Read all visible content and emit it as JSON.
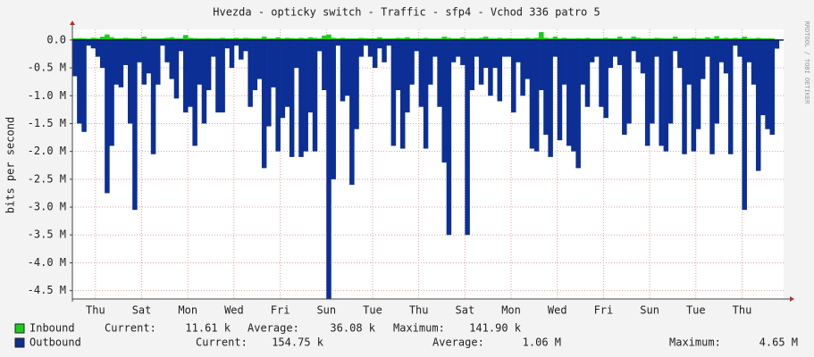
{
  "chart_data": {
    "type": "bar",
    "title": "Hvezda - opticky switch - Traffic - sfp4 - Vchod 336 patro 5",
    "y_label": "bits per second",
    "side_text": "RRDTOOL / TOBI OETIKER",
    "x": [
      0.1,
      0.3,
      0.5,
      0.7,
      0.9,
      1.1,
      1.3,
      1.5,
      1.7,
      1.9,
      2.1,
      2.3,
      2.5,
      2.7,
      2.9,
      3.1,
      3.3,
      3.5,
      3.7,
      3.9,
      4.1,
      4.3,
      4.5,
      4.7,
      4.9,
      5.1,
      5.3,
      5.5,
      5.7,
      5.9,
      6.1,
      6.3,
      6.5,
      6.7,
      6.9,
      7.1,
      7.3,
      7.5,
      7.7,
      7.9,
      8.1,
      8.3,
      8.5,
      8.7,
      8.9,
      9.1,
      9.3,
      9.5,
      9.7,
      9.9,
      10.1,
      10.3,
      10.5,
      10.7,
      10.9,
      11.1,
      11.3,
      11.5,
      11.7,
      11.9,
      12.1,
      12.3,
      12.5,
      12.7,
      12.9,
      13.1,
      13.3,
      13.5,
      13.7,
      13.9,
      14.1,
      14.3,
      14.5,
      14.7,
      14.9,
      15.1,
      15.3,
      15.5,
      15.7,
      15.9,
      16.1,
      16.3,
      16.5,
      16.7,
      16.9,
      17.1,
      17.3,
      17.5,
      17.7,
      17.9,
      18.1,
      18.3,
      18.5,
      18.7,
      18.9,
      19.1,
      19.3,
      19.5,
      19.7,
      19.9,
      20.1,
      20.3,
      20.5,
      20.7,
      20.9,
      21.1,
      21.3,
      21.5,
      21.7,
      21.9,
      22.1,
      22.3,
      22.5,
      22.7,
      22.9,
      23.1,
      23.3,
      23.5,
      23.7,
      23.9,
      24.1,
      24.3,
      24.5,
      24.7,
      24.9,
      25.1,
      25.3,
      25.5,
      25.7,
      25.9,
      26.1,
      26.3,
      26.5,
      26.7,
      26.9,
      27.1,
      27.3,
      27.5,
      27.7,
      27.9,
      28.1,
      28.3,
      28.5,
      28.7,
      28.9,
      29.1,
      29.3,
      29.5,
      29.7,
      29.9,
      30.1,
      30.3,
      30.5
    ],
    "series": [
      {
        "name": "Inbound",
        "color": "#18d018",
        "stats": [
          {
            "label": "Current:",
            "value": "11.61 k"
          },
          {
            "label": "Average:",
            "value": "36.08 k"
          },
          {
            "label": "Maximum:",
            "value": "141.90 k"
          }
        ],
        "values": [
          30000,
          35000,
          30000,
          25000,
          40000,
          30000,
          60000,
          100000,
          50000,
          30000,
          30000,
          40000,
          35000,
          30000,
          30000,
          60000,
          30000,
          30000,
          30000,
          30000,
          40000,
          50000,
          30000,
          30000,
          90000,
          40000,
          35000,
          30000,
          30000,
          35000,
          30000,
          30000,
          40000,
          30000,
          30000,
          40000,
          30000,
          40000,
          35000,
          30000,
          30000,
          60000,
          30000,
          30000,
          50000,
          30000,
          40000,
          35000,
          30000,
          40000,
          30000,
          50000,
          40000,
          30000,
          80000,
          100000,
          40000,
          30000,
          40000,
          30000,
          30000,
          30000,
          40000,
          35000,
          30000,
          30000,
          50000,
          30000,
          30000,
          30000,
          40000,
          35000,
          50000,
          30000,
          30000,
          30000,
          40000,
          30000,
          30000,
          30000,
          60000,
          40000,
          30000,
          30000,
          50000,
          30000,
          35000,
          30000,
          40000,
          60000,
          30000,
          30000,
          40000,
          30000,
          35000,
          30000,
          30000,
          30000,
          40000,
          30000,
          40000,
          141900,
          40000,
          30000,
          60000,
          30000,
          40000,
          30000,
          30000,
          35000,
          30000,
          40000,
          30000,
          30000,
          30000,
          40000,
          30000,
          30000,
          60000,
          30000,
          30000,
          60000,
          40000,
          30000,
          30000,
          30000,
          40000,
          35000,
          30000,
          30000,
          60000,
          30000,
          30000,
          30000,
          40000,
          30000,
          30000,
          50000,
          30000,
          70000,
          30000,
          40000,
          30000,
          40000,
          30000,
          60000,
          30000,
          30000,
          40000,
          30000,
          30000,
          30000,
          11610
        ]
      },
      {
        "name": "Outbound",
        "color": "#0c2f96",
        "stats": [
          {
            "label": "Current:",
            "value": "154.75 k"
          },
          {
            "label": "Average:",
            "value": "1.06 M"
          },
          {
            "label": "Maximum:",
            "value": "4.65 M"
          }
        ],
        "values": [
          -650000,
          -1500000,
          -1650000,
          -100000,
          -150000,
          -300000,
          -500000,
          -2750000,
          -1900000,
          -800000,
          -850000,
          -450000,
          -1500000,
          -3050000,
          -400000,
          -800000,
          -600000,
          -2050000,
          -800000,
          -100000,
          -400000,
          -700000,
          -1050000,
          -200000,
          -1300000,
          -1200000,
          -1900000,
          -800000,
          -1500000,
          -900000,
          -300000,
          -1300000,
          -1300000,
          -150000,
          -500000,
          -100000,
          -350000,
          -200000,
          -1200000,
          -900000,
          -700000,
          -2300000,
          -1550000,
          -850000,
          -2000000,
          -1400000,
          -1200000,
          -2100000,
          -500000,
          -2100000,
          -2000000,
          -1300000,
          -2000000,
          -200000,
          -900000,
          -4650000,
          -2500000,
          -100000,
          -1100000,
          -1000000,
          -2600000,
          -1600000,
          -300000,
          -100000,
          -300000,
          -500000,
          -150000,
          -400000,
          -100000,
          -1900000,
          -900000,
          -1950000,
          -1300000,
          -800000,
          -200000,
          -1200000,
          -1950000,
          -800000,
          -300000,
          -1200000,
          -2200000,
          -3500000,
          -400000,
          -300000,
          -450000,
          -3500000,
          -900000,
          -300000,
          -800000,
          -500000,
          -1000000,
          -500000,
          -1100000,
          -300000,
          -300000,
          -1300000,
          -400000,
          -1000000,
          -700000,
          -1950000,
          -2000000,
          -900000,
          -1700000,
          -2100000,
          -300000,
          -1800000,
          -800000,
          -1900000,
          -2000000,
          -2300000,
          -800000,
          -1200000,
          -400000,
          -300000,
          -1200000,
          -1400000,
          -500000,
          -300000,
          -450000,
          -1700000,
          -1500000,
          -200000,
          -400000,
          -600000,
          -1900000,
          -1500000,
          -300000,
          -1900000,
          -2000000,
          -1500000,
          -200000,
          -500000,
          -2050000,
          -800000,
          -2000000,
          -1600000,
          -700000,
          -300000,
          -2050000,
          -1500000,
          -400000,
          -600000,
          -2050000,
          -100000,
          -300000,
          -3050000,
          -400000,
          -800000,
          -2350000,
          -1350000,
          -1600000,
          -1700000,
          -154750
        ]
      }
    ],
    "xlim": [
      0,
      30.8
    ],
    "xticks": [
      {
        "value": 1,
        "label": "Thu"
      },
      {
        "value": 3,
        "label": "Sat"
      },
      {
        "value": 5,
        "label": "Mon"
      },
      {
        "value": 7,
        "label": "Wed"
      },
      {
        "value": 9,
        "label": "Fri"
      },
      {
        "value": 11,
        "label": "Sun"
      },
      {
        "value": 13,
        "label": "Tue"
      },
      {
        "value": 15,
        "label": "Thu"
      },
      {
        "value": 17,
        "label": "Sat"
      },
      {
        "value": 19,
        "label": "Mon"
      },
      {
        "value": 21,
        "label": "Wed"
      },
      {
        "value": 23,
        "label": "Fri"
      },
      {
        "value": 25,
        "label": "Sun"
      },
      {
        "value": 27,
        "label": "Tue"
      },
      {
        "value": 29,
        "label": "Thu"
      }
    ],
    "ylim": [
      -4650000,
      190000
    ],
    "yticks": [
      {
        "value": 0,
        "label": "0.0"
      },
      {
        "value": -500000,
        "label": "-0.5 M"
      },
      {
        "value": -1000000,
        "label": "-1.0 M"
      },
      {
        "value": -1500000,
        "label": "-1.5 M"
      },
      {
        "value": -2000000,
        "label": "-2.0 M"
      },
      {
        "value": -2500000,
        "label": "-2.5 M"
      },
      {
        "value": -3000000,
        "label": "-3.0 M"
      },
      {
        "value": -3500000,
        "label": "-3.5 M"
      },
      {
        "value": -4000000,
        "label": "-4.0 M"
      },
      {
        "value": -4500000,
        "label": "-4.5 M"
      }
    ],
    "grid": true
  }
}
